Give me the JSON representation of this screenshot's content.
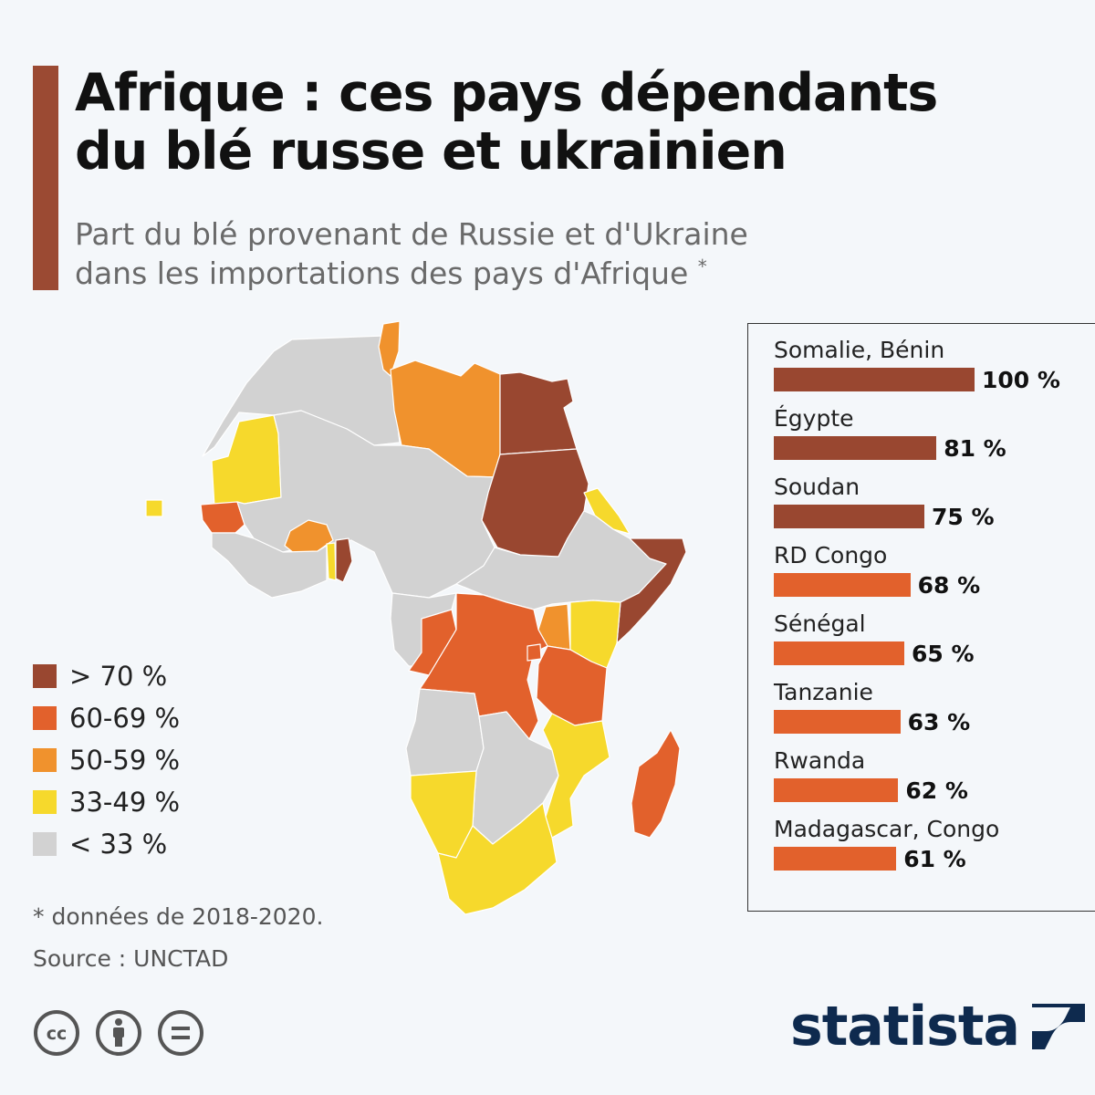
{
  "header": {
    "title_line1": "Afrique : ces pays dépendants",
    "title_line2": "du blé russe et ukrainien",
    "subtitle_line1": "Part du blé provenant de Russie et d'Ukraine",
    "subtitle_line2": "dans les importations des pays d'Afrique",
    "subtitle_mark": "*"
  },
  "colors": {
    "accent": "#9b4a33",
    "above_70": "#994730",
    "c60_69": "#e2612c",
    "c50_59": "#f0922d",
    "c33_49": "#f6d92c",
    "below_33": "#d2d2d2",
    "brand": "#0e2a4e"
  },
  "legend": [
    {
      "label": "> 70 %",
      "color_key": "above_70"
    },
    {
      "label": "60-69 %",
      "color_key": "c60_69"
    },
    {
      "label": "50-59 %",
      "color_key": "c50_59"
    },
    {
      "label": "33-49 %",
      "color_key": "c33_49"
    },
    {
      "label": "< 33 %",
      "color_key": "below_33"
    }
  ],
  "ranking": [
    {
      "name": "Somalie, Bénin",
      "value": 100,
      "label": "100 %",
      "color_key": "above_70"
    },
    {
      "name": "Égypte",
      "value": 81,
      "label": "81 %",
      "color_key": "above_70"
    },
    {
      "name": "Soudan",
      "value": 75,
      "label": "75 %",
      "color_key": "above_70"
    },
    {
      "name": "RD Congo",
      "value": 68,
      "label": "68 %",
      "color_key": "c60_69"
    },
    {
      "name": "Sénégal",
      "value": 65,
      "label": "65 %",
      "color_key": "c60_69"
    },
    {
      "name": "Tanzanie",
      "value": 63,
      "label": "63 %",
      "color_key": "c60_69"
    },
    {
      "name": "Rwanda",
      "value": 62,
      "label": "62 %",
      "color_key": "c60_69"
    },
    {
      "name": "Madagascar, Congo",
      "value": 61,
      "label": "61 %",
      "color_key": "c60_69"
    }
  ],
  "map_regions": [
    {
      "id": "maghreb-west",
      "color_key": "below_33"
    },
    {
      "id": "mauritania",
      "color_key": "c33_49"
    },
    {
      "id": "cape-verde",
      "color_key": "c33_49"
    },
    {
      "id": "senegal",
      "color_key": "c60_69"
    },
    {
      "id": "tunisia",
      "color_key": "c50_59"
    },
    {
      "id": "libya",
      "color_key": "c50_59"
    },
    {
      "id": "egypt",
      "color_key": "above_70"
    },
    {
      "id": "sahel",
      "color_key": "below_33"
    },
    {
      "id": "burkina-faso",
      "color_key": "c50_59"
    },
    {
      "id": "benin",
      "color_key": "above_70"
    },
    {
      "id": "togo",
      "color_key": "c33_49"
    },
    {
      "id": "coastal-west-africa",
      "color_key": "below_33"
    },
    {
      "id": "sudan",
      "color_key": "above_70"
    },
    {
      "id": "eritrea-djibouti",
      "color_key": "c33_49"
    },
    {
      "id": "ethiopia-south-sudan",
      "color_key": "below_33"
    },
    {
      "id": "somalia",
      "color_key": "above_70"
    },
    {
      "id": "kenya",
      "color_key": "c33_49"
    },
    {
      "id": "uganda",
      "color_key": "c50_59"
    },
    {
      "id": "central-africa-gabon",
      "color_key": "below_33"
    },
    {
      "id": "congo",
      "color_key": "c60_69"
    },
    {
      "id": "dr-congo",
      "color_key": "c60_69"
    },
    {
      "id": "rwanda",
      "color_key": "c60_69"
    },
    {
      "id": "tanzania",
      "color_key": "c60_69"
    },
    {
      "id": "angola",
      "color_key": "below_33"
    },
    {
      "id": "zambia-zimbabwe-botswana",
      "color_key": "below_33"
    },
    {
      "id": "malawi-mozambique",
      "color_key": "c33_49"
    },
    {
      "id": "namibia",
      "color_key": "c33_49"
    },
    {
      "id": "south-africa",
      "color_key": "c33_49"
    },
    {
      "id": "madagascar",
      "color_key": "c60_69"
    }
  ],
  "footer": {
    "footnote": "* données de 2018-2020.",
    "source": "Source : UNCTAD",
    "brand": "statista",
    "license_icons": [
      "creative-commons-icon",
      "attribution-icon",
      "no-derivatives-icon"
    ]
  }
}
